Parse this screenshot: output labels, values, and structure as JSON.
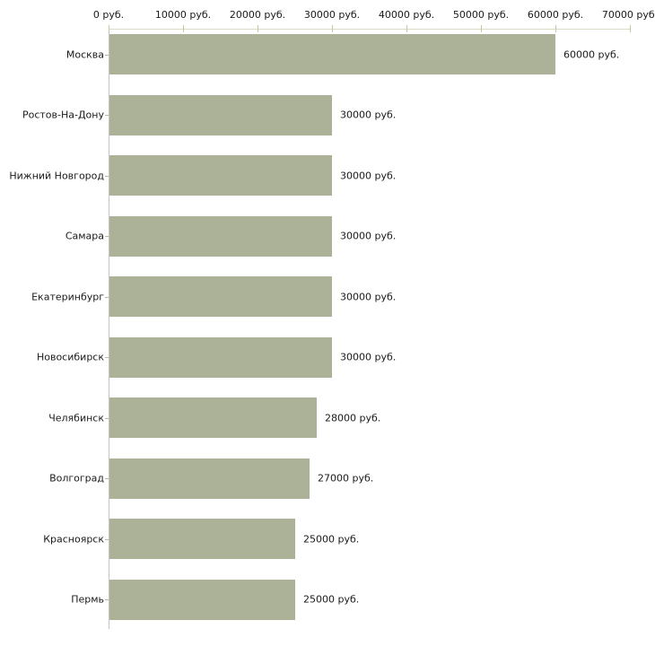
{
  "chart_data": {
    "type": "bar",
    "orientation": "horizontal",
    "title": "",
    "xlabel": "",
    "ylabel": "",
    "categories": [
      "Москва",
      "Ростов-На-Дону",
      "Нижний Новгород",
      "Самара",
      "Екатеринбург",
      "Новосибирск",
      "Челябинск",
      "Волгоград",
      "Красноярск",
      "Пермь"
    ],
    "values": [
      60000,
      30000,
      30000,
      30000,
      30000,
      30000,
      28000,
      27000,
      25000,
      25000
    ],
    "value_labels": [
      "60000 руб.",
      "30000 руб.",
      "30000 руб.",
      "30000 руб.",
      "30000 руб.",
      "30000 руб.",
      "28000 руб.",
      "27000 руб.",
      "25000 руб.",
      "25000 руб."
    ],
    "x_axis": {
      "position": "top",
      "ticks": [
        0,
        10000,
        20000,
        30000,
        40000,
        50000,
        60000,
        70000
      ],
      "tick_labels": [
        "0 руб.",
        "10000 руб.",
        "20000 руб.",
        "30000 руб.",
        "40000 руб.",
        "50000 руб.",
        "60000 руб.",
        "70000 руб."
      ]
    },
    "xlim": [
      0,
      70000
    ],
    "grid": false,
    "legend": null,
    "colors": {
      "bar_fill": "#acb297",
      "top_axis_line": "#dadcc6",
      "top_tick": "#c3c89f",
      "left_axis_line": "#c4c4c4",
      "category_tick": "#b4b9a0",
      "text": "#1a1a1a",
      "background": "#ffffff"
    }
  }
}
